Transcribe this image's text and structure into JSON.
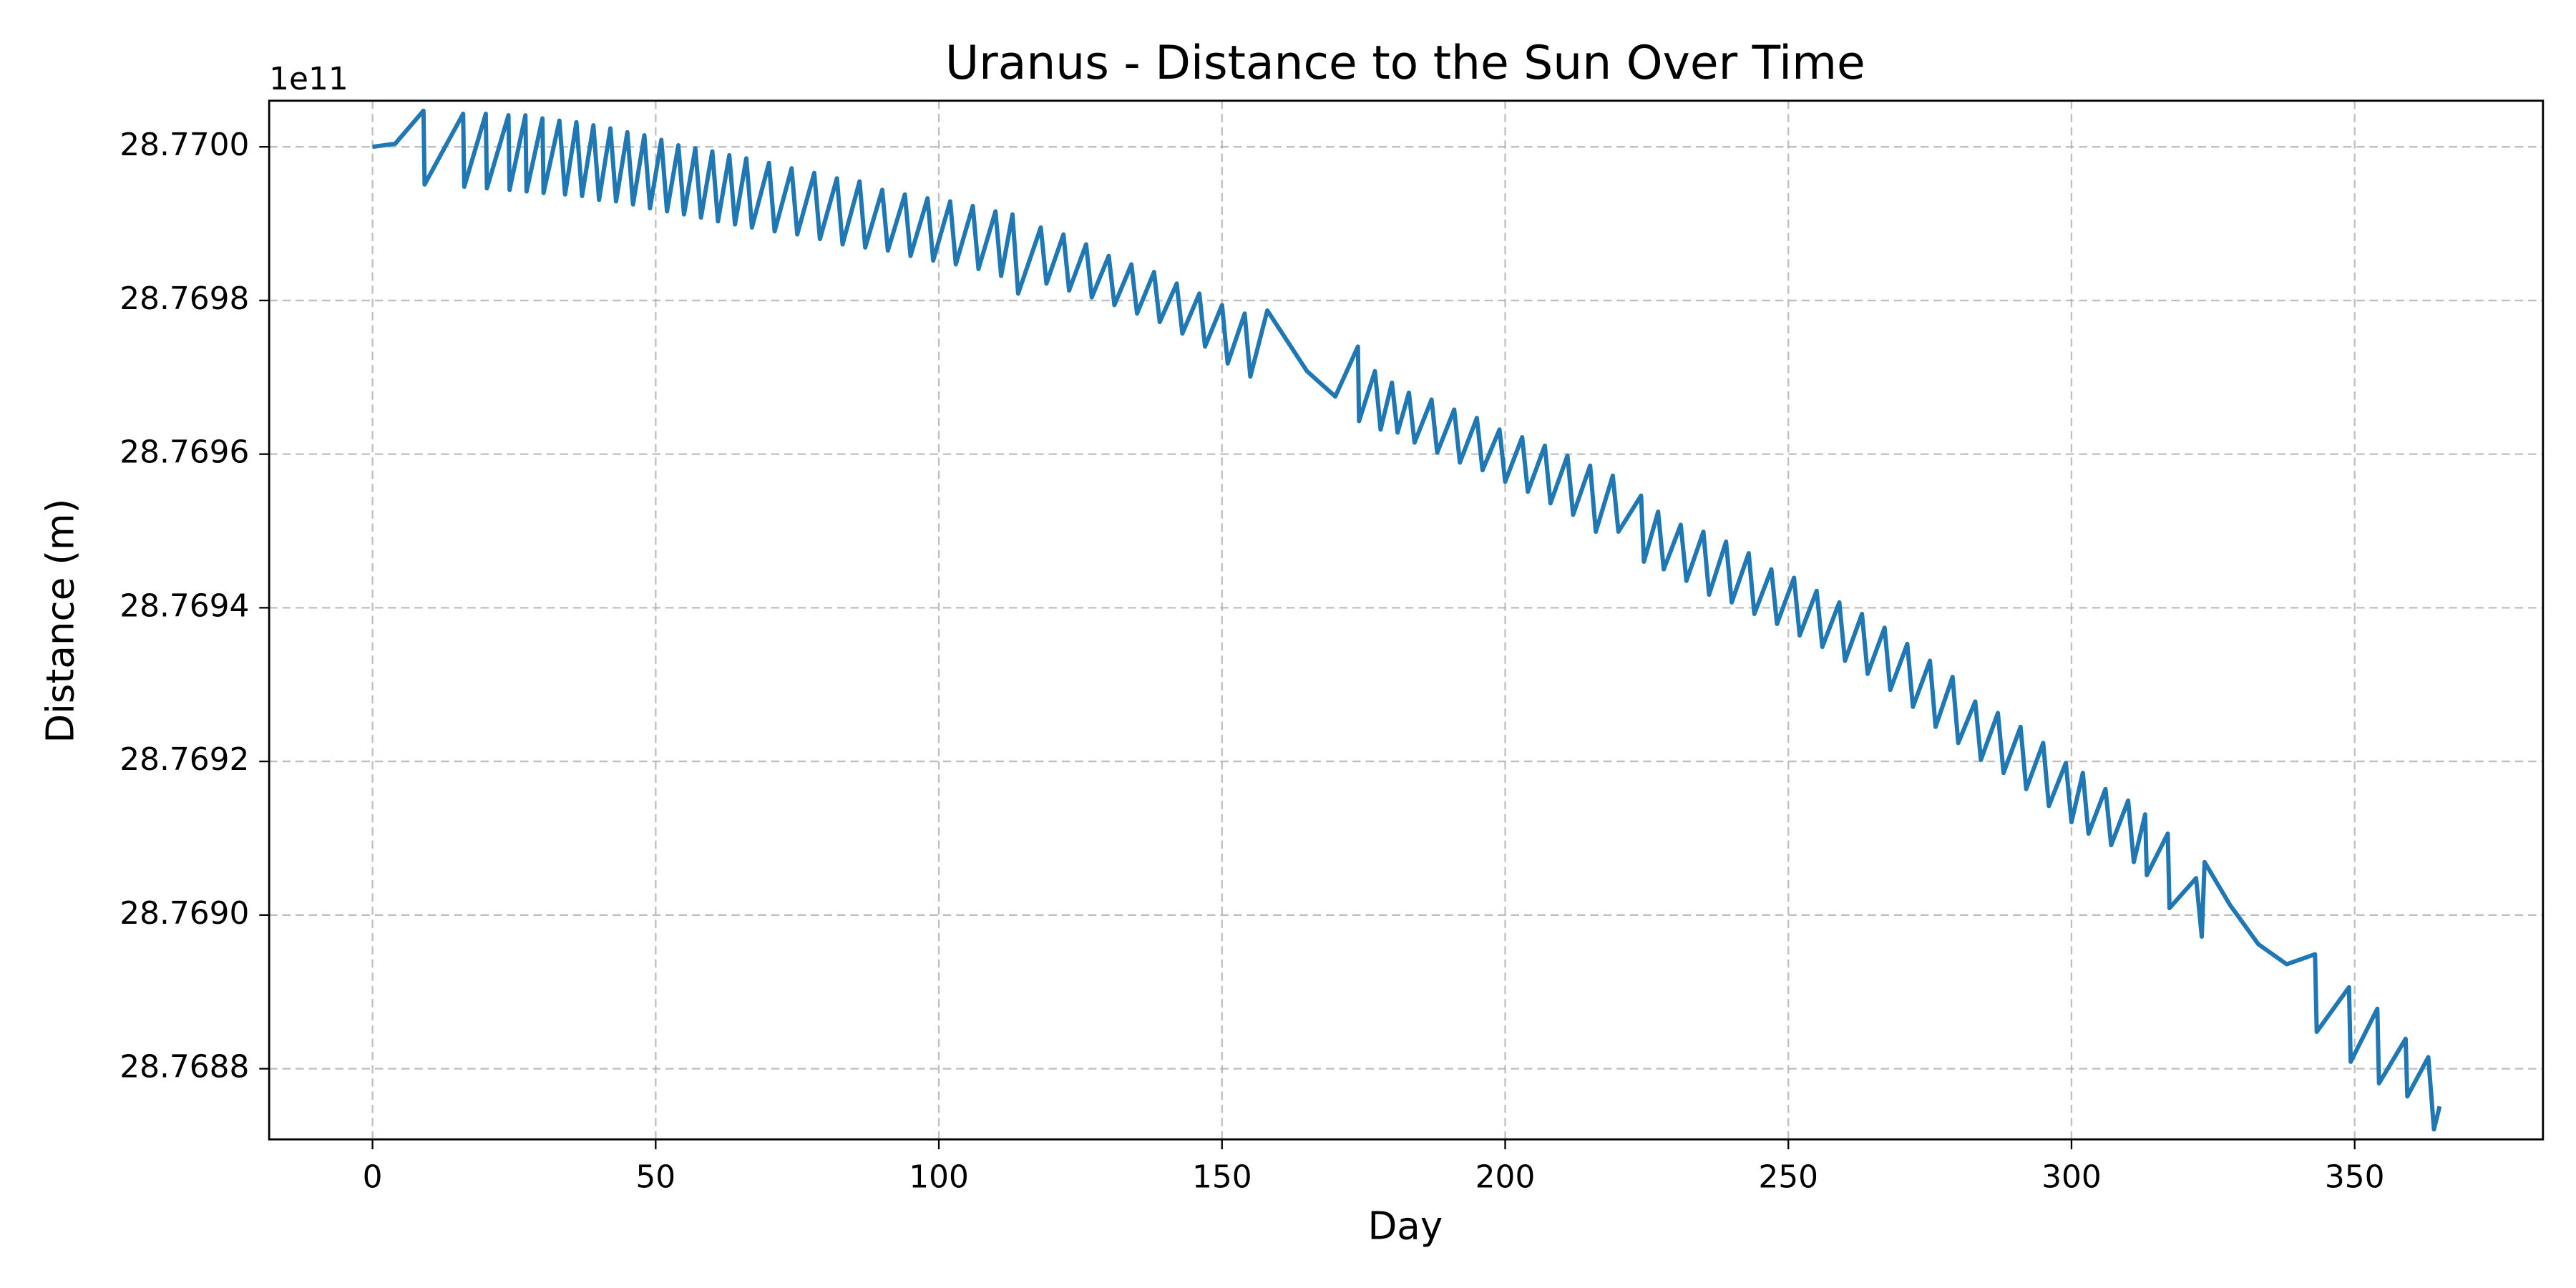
{
  "chart_data": {
    "type": "line",
    "title": "Uranus - Distance to the Sun Over Time",
    "xlabel": "Day",
    "ylabel": "Distance (m)",
    "offset_text": "1e11",
    "color": "#1f77b4",
    "grid": true,
    "xlim": [
      -18.25,
      383.25
    ],
    "xticks": [
      0,
      50,
      100,
      150,
      200,
      250,
      300,
      350
    ],
    "ylim": [
      28.768708,
      28.77006
    ],
    "yticks": [
      {
        "value": 28.7688,
        "label": "28.7688"
      },
      {
        "value": 28.769,
        "label": "28.7690"
      },
      {
        "value": 28.7692,
        "label": "28.7692"
      },
      {
        "value": 28.7694,
        "label": "28.7694"
      },
      {
        "value": 28.7696,
        "label": "28.7696"
      },
      {
        "value": 28.7698,
        "label": "28.7698"
      },
      {
        "value": 28.77,
        "label": "28.7700"
      }
    ],
    "x": [
      0,
      4,
      9,
      9.2,
      16,
      16.2,
      20,
      20.2,
      24,
      24.2,
      27,
      27.2,
      30,
      30.2,
      33,
      34,
      36,
      37,
      39,
      40,
      42,
      43,
      45,
      46,
      48,
      49,
      51,
      52,
      54,
      55,
      57,
      58,
      60,
      61,
      63,
      64,
      66,
      67,
      70,
      71,
      74,
      75,
      78,
      79,
      82,
      83,
      86,
      87,
      90,
      91,
      94,
      95,
      98,
      99,
      102,
      103,
      106,
      107,
      110,
      111,
      113,
      114,
      118,
      119,
      122,
      123,
      126,
      127,
      130,
      131,
      134,
      135,
      138,
      139,
      142,
      143,
      146,
      147,
      150,
      151,
      154,
      155,
      158,
      165,
      170,
      174,
      174.2,
      177,
      178,
      180,
      181,
      183,
      184,
      187,
      188,
      191,
      192,
      195,
      196,
      199,
      200,
      203,
      204,
      207,
      208,
      211,
      212,
      215,
      216,
      219,
      220,
      224,
      224.5,
      227,
      228,
      231,
      232,
      235,
      236,
      239,
      240,
      243,
      244,
      247,
      248,
      251,
      252,
      255,
      256,
      259,
      260,
      263,
      264,
      267,
      268,
      271,
      272,
      275,
      276,
      279,
      280,
      283,
      284,
      287,
      288,
      291,
      292,
      295,
      296,
      299,
      300,
      302,
      303,
      306,
      307,
      310,
      311,
      313,
      313.3,
      317,
      317.3,
      322,
      323,
      323.5,
      328,
      333,
      338,
      343,
      343.3,
      349,
      349.3,
      354,
      354.3,
      359,
      359.3,
      363,
      364,
      365
    ],
    "values": [
      28.77,
      28.770004,
      28.770047,
      28.769951,
      28.770043,
      28.769948,
      28.770043,
      28.769946,
      28.770041,
      28.769944,
      28.770041,
      28.769942,
      28.770037,
      28.76994,
      28.770034,
      28.769938,
      28.770032,
      28.769936,
      28.770028,
      28.769931,
      28.770024,
      28.769929,
      28.770019,
      28.769925,
      28.770015,
      28.76992,
      28.770009,
      28.769916,
      28.770002,
      28.769912,
      28.769998,
      28.769908,
      28.769994,
      28.769903,
      28.769989,
      28.769899,
      28.769985,
      28.769895,
      28.769979,
      28.76989,
      28.769972,
      28.769886,
      28.769966,
      28.76988,
      28.769959,
      28.769873,
      28.769955,
      28.769869,
      28.769944,
      28.769865,
      28.769938,
      28.769858,
      28.769933,
      28.769852,
      28.769929,
      28.769847,
      28.769923,
      28.769841,
      28.769916,
      28.769832,
      28.769912,
      28.769809,
      28.769895,
      28.769822,
      28.769886,
      28.769813,
      28.769873,
      28.769804,
      28.769858,
      28.769794,
      28.769847,
      28.769783,
      28.769837,
      28.769772,
      28.769822,
      28.769757,
      28.769809,
      28.76974,
      28.769794,
      28.769718,
      28.769783,
      28.769701,
      28.769787,
      28.769708,
      28.769675,
      28.76974,
      28.769643,
      28.769708,
      28.769632,
      28.769693,
      28.769628,
      28.76968,
      28.769615,
      28.769671,
      28.769602,
      28.769658,
      28.769589,
      28.769647,
      28.769579,
      28.769632,
      28.769564,
      28.769622,
      28.769551,
      28.769611,
      28.769536,
      28.769598,
      28.769521,
      28.769585,
      28.769499,
      28.769572,
      28.769499,
      28.769546,
      28.76946,
      28.769525,
      28.76945,
      28.769508,
      28.769435,
      28.769499,
      28.769417,
      28.769486,
      28.769407,
      28.769471,
      28.769392,
      28.76945,
      28.769379,
      28.769439,
      28.769364,
      28.769422,
      28.769349,
      28.769407,
      28.769331,
      28.769392,
      28.769314,
      28.769374,
      28.769293,
      28.769353,
      28.769271,
      28.769331,
      28.769245,
      28.76931,
      28.769224,
      28.769278,
      28.769202,
      28.769263,
      28.769185,
      28.769245,
      28.769164,
      28.769224,
      28.769142,
      28.769198,
      28.769121,
      28.769185,
      28.769106,
      28.769164,
      28.769091,
      28.769149,
      28.769069,
      28.769131,
      28.769052,
      28.769106,
      28.769009,
      28.769048,
      28.768972,
      28.769069,
      28.769013,
      28.768962,
      28.768936,
      28.768949,
      28.768848,
      28.768906,
      28.768809,
      28.768878,
      28.768781,
      28.768839,
      28.768764,
      28.768815,
      28.768721,
      28.768751
    ]
  }
}
